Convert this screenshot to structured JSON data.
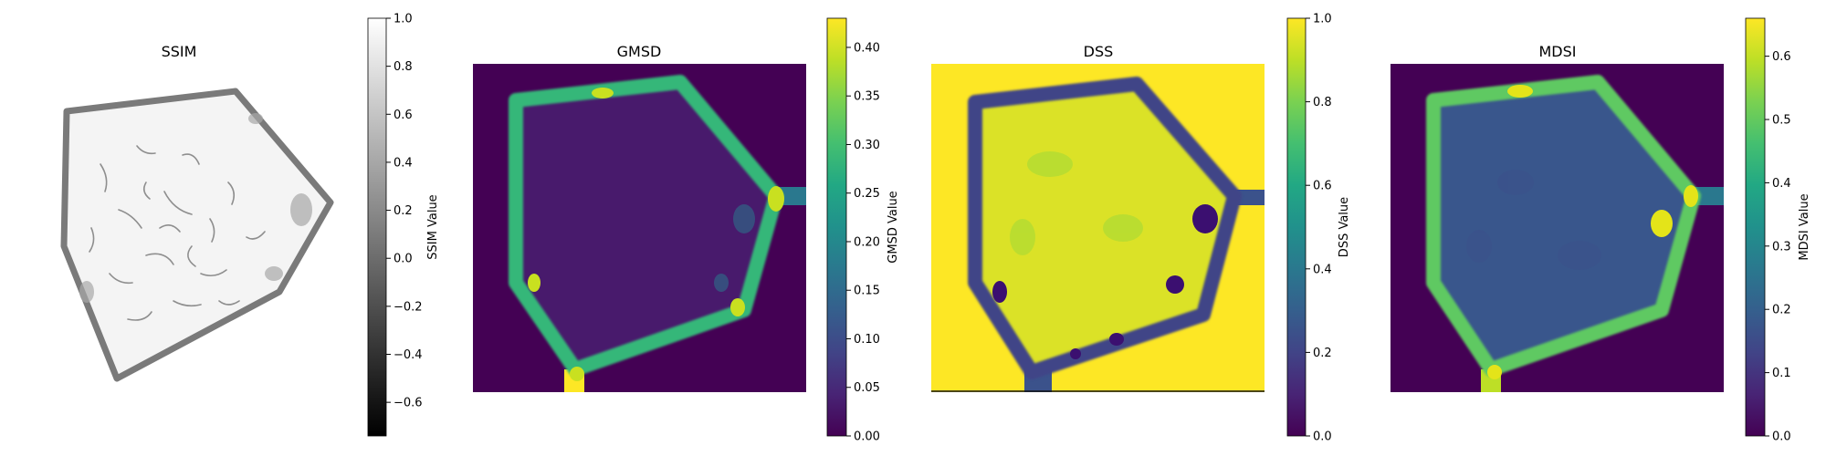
{
  "chart_data": [
    {
      "type": "heatmap",
      "title": "SSIM",
      "colormap": "gray",
      "colorbar_label": "SSIM Value",
      "colorbar_ticks": [
        "−0.6",
        "−0.4",
        "−0.2",
        "0.0",
        "0.2",
        "0.4",
        "0.6",
        "0.8",
        "1.0"
      ],
      "colorbar_tick_values": [
        -0.6,
        -0.4,
        -0.2,
        0.0,
        0.2,
        0.4,
        0.6,
        0.8,
        1.0
      ],
      "clim": [
        -0.74,
        1.0
      ],
      "background": "transparent",
      "axes_visible": false
    },
    {
      "type": "heatmap",
      "title": "GMSD",
      "colormap": "viridis",
      "colorbar_label": "GMSD Value",
      "colorbar_ticks": [
        "0.00",
        "0.05",
        "0.10",
        "0.15",
        "0.20",
        "0.25",
        "0.30",
        "0.35",
        "0.40"
      ],
      "colorbar_tick_values": [
        0.0,
        0.05,
        0.1,
        0.15,
        0.2,
        0.25,
        0.3,
        0.35,
        0.4
      ],
      "clim": [
        0.0,
        0.43
      ],
      "background_value": 0.0,
      "interior_value": 0.02,
      "edge_value": 0.3,
      "axes_visible": false
    },
    {
      "type": "heatmap",
      "title": "DSS",
      "colormap": "viridis",
      "colorbar_label": "DSS Value",
      "colorbar_ticks": [
        "0.0",
        "0.2",
        "0.4",
        "0.6",
        "0.8",
        "1.0"
      ],
      "colorbar_tick_values": [
        0.0,
        0.2,
        0.4,
        0.6,
        0.8,
        1.0
      ],
      "clim": [
        0.0,
        1.0
      ],
      "background_value": 1.0,
      "interior_value": 0.95,
      "edge_value": 0.3,
      "axes_visible": false
    },
    {
      "type": "heatmap",
      "title": "MDSI",
      "colormap": "viridis",
      "colorbar_label": "MDSI Value",
      "colorbar_ticks": [
        "0.0",
        "0.1",
        "0.2",
        "0.3",
        "0.4",
        "0.5",
        "0.6"
      ],
      "colorbar_tick_values": [
        0.0,
        0.1,
        0.2,
        0.3,
        0.4,
        0.5,
        0.6
      ],
      "clim": [
        0.0,
        0.66
      ],
      "background_value": 0.0,
      "interior_value": 0.2,
      "edge_value": 0.5,
      "axes_visible": false
    }
  ]
}
